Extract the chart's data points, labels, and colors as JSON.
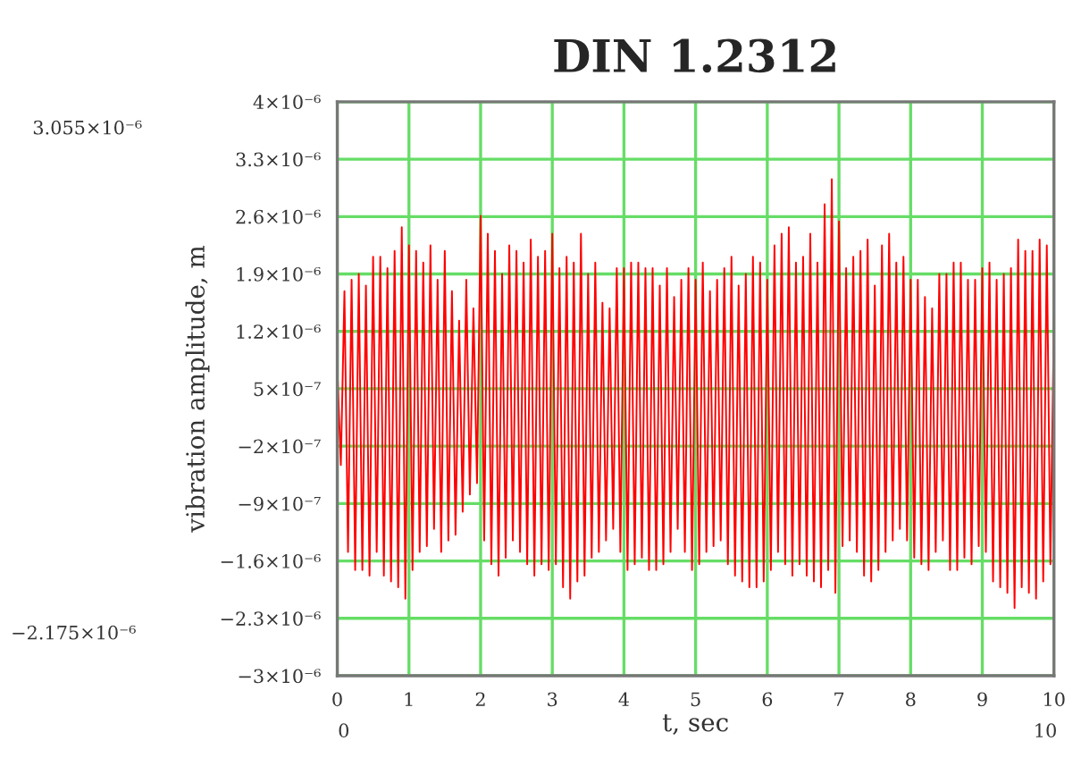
{
  "chart_data": {
    "type": "line",
    "title": "DIN 1.2312",
    "xlabel": "t, sec",
    "ylabel": "vibration amplitude, m",
    "annotations": [
      "3.055×10⁻⁶",
      "−2.175×10⁻⁶",
      "0",
      "10"
    ],
    "xlim": [
      0,
      10
    ],
    "xticks": [
      0,
      1,
      2,
      3,
      4,
      5,
      6,
      7,
      8,
      9,
      10
    ],
    "ylim": [
      -3e-06,
      4e-06
    ],
    "yticks": [
      {
        "value": -3e-06,
        "label": "−3×10⁻⁶"
      },
      {
        "value": -2.3e-06,
        "label": "−2.3×10⁻⁶"
      },
      {
        "value": -1.6e-06,
        "label": "−1.6×10⁻⁶"
      },
      {
        "value": -9e-07,
        "label": "−9×10⁻⁷"
      },
      {
        "value": -2e-07,
        "label": "−2×10⁻⁷"
      },
      {
        "value": 5e-07,
        "label": "5×10⁻⁷"
      },
      {
        "value": 1.2e-06,
        "label": "1.2×10⁻⁶"
      },
      {
        "value": 1.9e-06,
        "label": "1.9×10⁻⁶"
      },
      {
        "value": 2.6e-06,
        "label": "2.6×10⁻⁶"
      },
      {
        "value": 3.3e-06,
        "label": "3.3×10⁻⁶"
      },
      {
        "value": 4e-06,
        "label": "4×10⁻⁶"
      }
    ],
    "grid": true,
    "legend": false,
    "marker": "none",
    "line_style": "solid",
    "x": [
      0,
      0.05,
      0.1,
      0.15,
      0.2,
      0.25,
      0.3,
      0.35,
      0.4,
      0.45,
      0.5,
      0.55,
      0.6,
      0.65,
      0.7,
      0.75,
      0.8,
      0.85,
      0.9,
      0.95,
      1,
      1.05,
      1.1,
      1.15,
      1.2,
      1.25,
      1.3,
      1.35,
      1.4,
      1.45,
      1.5,
      1.55,
      1.6,
      1.65,
      1.7,
      1.75,
      1.8,
      1.85,
      1.9,
      1.95,
      2,
      2.05,
      2.1,
      2.15,
      2.2,
      2.25,
      2.3,
      2.35,
      2.4,
      2.45,
      2.5,
      2.55,
      2.6,
      2.65,
      2.7,
      2.75,
      2.8,
      2.85,
      2.9,
      2.95,
      3,
      3.05,
      3.1,
      3.15,
      3.2,
      3.25,
      3.3,
      3.35,
      3.4,
      3.45,
      3.5,
      3.55,
      3.6,
      3.65,
      3.7,
      3.75,
      3.8,
      3.85,
      3.9,
      3.95,
      4,
      4.05,
      4.1,
      4.15,
      4.2,
      4.25,
      4.3,
      4.35,
      4.4,
      4.45,
      4.5,
      4.55,
      4.6,
      4.65,
      4.7,
      4.75,
      4.8,
      4.85,
      4.9,
      4.95,
      5,
      5.05,
      5.1,
      5.15,
      5.2,
      5.25,
      5.3,
      5.35,
      5.4,
      5.45,
      5.5,
      5.55,
      5.6,
      5.65,
      5.7,
      5.75,
      5.8,
      5.85,
      5.9,
      5.95,
      6,
      6.05,
      6.1,
      6.15,
      6.2,
      6.25,
      6.3,
      6.35,
      6.4,
      6.45,
      6.5,
      6.55,
      6.6,
      6.65,
      6.7,
      6.75,
      6.8,
      6.85,
      6.9,
      6.95,
      7,
      7.05,
      7.1,
      7.15,
      7.2,
      7.25,
      7.3,
      7.35,
      7.4,
      7.45,
      7.5,
      7.55,
      7.6,
      7.65,
      7.7,
      7.75,
      7.8,
      7.85,
      7.9,
      7.95,
      8,
      8.05,
      8.1,
      8.15,
      8.2,
      8.25,
      8.3,
      8.35,
      8.4,
      8.45,
      8.5,
      8.55,
      8.6,
      8.65,
      8.7,
      8.75,
      8.8,
      8.85,
      8.9,
      8.95,
      9,
      9.05,
      9.1,
      9.15,
      9.2,
      9.25,
      9.3,
      9.35,
      9.4,
      9.45,
      9.5,
      9.55,
      9.6,
      9.65,
      9.7,
      9.75,
      9.8,
      9.85,
      9.9,
      9.95,
      10
    ],
    "series": [
      {
        "color": "#ff0000",
        "values": [
          7.7e-07,
          -4.3e-07,
          1.69e-06,
          -1.49e-06,
          1.83e-06,
          -1.71e-06,
          1.9e-06,
          -1.71e-06,
          1.76e-06,
          -1.78e-06,
          2.11e-06,
          -1.49e-06,
          2.11e-06,
          -1.78e-06,
          1.97e-06,
          -1.85e-06,
          2.18e-06,
          -1.92e-06,
          2.47e-06,
          -2.06e-06,
          2.25e-06,
          -1.71e-06,
          2.18e-06,
          -1.49e-06,
          2.04e-06,
          -1.42e-06,
          2.25e-06,
          -1.21e-06,
          1.83e-06,
          -1.49e-06,
          2.18e-06,
          -1.35e-06,
          1.69e-06,
          -1.28e-06,
          1.33e-06,
          -1e-06,
          1.83e-06,
          -7.9e-07,
          1.48e-06,
          -6.5e-07,
          2.61e-06,
          -1.35e-06,
          2.39e-06,
          -1.64e-06,
          2.18e-06,
          -1.78e-06,
          1.9e-06,
          -1.56e-06,
          2.25e-06,
          -1.35e-06,
          2.18e-06,
          -1.49e-06,
          2.04e-06,
          -1.64e-06,
          2.32e-06,
          -1.78e-06,
          2.11e-06,
          -1.64e-06,
          2.18e-06,
          -1.71e-06,
          2.39e-06,
          -1.64e-06,
          1.97e-06,
          -1.92e-06,
          2.11e-06,
          -2.06e-06,
          2.04e-06,
          -1.85e-06,
          2.39e-06,
          -1.78e-06,
          1.9e-06,
          -1.56e-06,
          2.04e-06,
          -1.49e-06,
          1.55e-06,
          -1.35e-06,
          1.48e-06,
          -1.21e-06,
          1.97e-06,
          -1.49e-06,
          1.97e-06,
          -1.71e-06,
          2.04e-06,
          -1.64e-06,
          2.04e-06,
          -1.56e-06,
          1.97e-06,
          -1.71e-06,
          1.97e-06,
          -1.71e-06,
          1.76e-06,
          -1.64e-06,
          1.97e-06,
          -1.49e-06,
          1.62e-06,
          -1.21e-06,
          1.83e-06,
          -1.49e-06,
          1.97e-06,
          -1.71e-06,
          1.83e-06,
          -1.64e-06,
          2.04e-06,
          -1.49e-06,
          1.69e-06,
          -1.42e-06,
          1.83e-06,
          -1.35e-06,
          1.97e-06,
          -1.64e-06,
          2.11e-06,
          -1.78e-06,
          1.76e-06,
          -1.85e-06,
          1.9e-06,
          -1.92e-06,
          2.11e-06,
          -1.92e-06,
          2.04e-06,
          -1.85e-06,
          1.83e-06,
          -1.71e-06,
          2.25e-06,
          -1.49e-06,
          2.39e-06,
          -1.64e-06,
          2.47e-06,
          -1.78e-06,
          2.04e-06,
          -1.64e-06,
          2.11e-06,
          -1.78e-06,
          2.39e-06,
          -1.85e-06,
          2.04e-06,
          -1.92e-06,
          2.75e-06,
          -1.71e-06,
          3.055e-06,
          -1.99e-06,
          2.54e-06,
          -1.42e-06,
          1.97e-06,
          -1.35e-06,
          2.11e-06,
          -1.49e-06,
          2.18e-06,
          -1.78e-06,
          2.32e-06,
          -1.85e-06,
          1.76e-06,
          -1.71e-06,
          2.25e-06,
          -1.49e-06,
          2.39e-06,
          -1.35e-06,
          2.04e-06,
          -1.21e-06,
          2.11e-06,
          -1.35e-06,
          1.83e-06,
          -1.56e-06,
          1.83e-06,
          -1.64e-06,
          1.62e-06,
          -1.71e-06,
          1.48e-06,
          -1.49e-06,
          1.9e-06,
          -1.35e-06,
          1.9e-06,
          -1.71e-06,
          2.04e-06,
          -1.71e-06,
          2.04e-06,
          -1.56e-06,
          1.83e-06,
          -1.64e-06,
          1.83e-06,
          -1.42e-06,
          1.97e-06,
          -1.49e-06,
          2.04e-06,
          -1.85e-06,
          1.83e-06,
          -1.92e-06,
          1.9e-06,
          -1.99e-06,
          1.97e-06,
          -2.175e-06,
          2.32e-06,
          -1.92e-06,
          2.18e-06,
          -1.99e-06,
          2.18e-06,
          -2.06e-06,
          2.32e-06,
          -1.85e-06,
          2.25e-06,
          -1.64e-06,
          1.4e-06
        ]
      }
    ]
  }
}
